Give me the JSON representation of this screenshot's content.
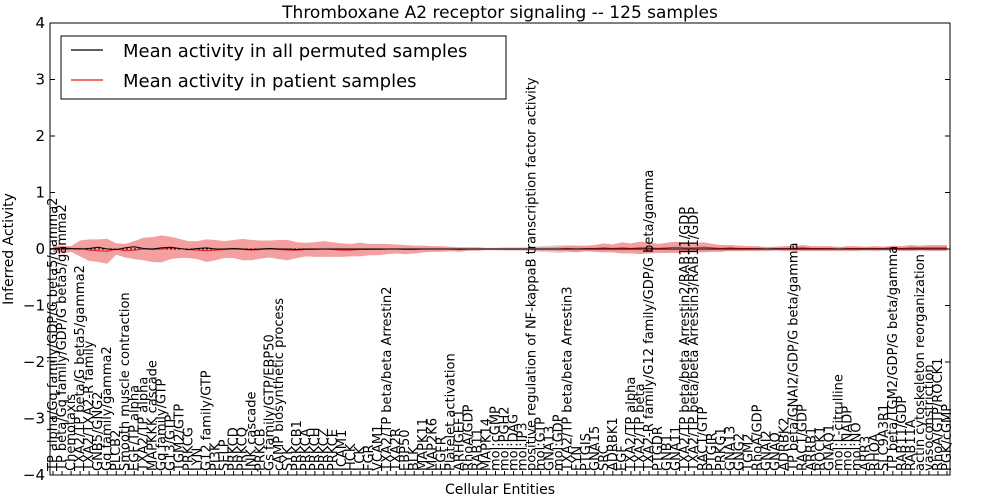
{
  "chart_data": {
    "type": "line",
    "title": "Thromboxane A2 receptor signaling -- 125 samples",
    "xlabel": "Cellular Entities",
    "ylabel": "Inferred Activity",
    "ylim": [
      -4,
      4
    ],
    "yticks": [
      4,
      3,
      2,
      1,
      0,
      -1,
      -2,
      -3,
      -4
    ],
    "ytick_labels": [
      "4",
      "3",
      "2",
      "1",
      "0",
      "−1",
      "−2",
      "−3",
      "−4"
    ],
    "legend": {
      "placement": "top-left",
      "entries": [
        {
          "label": "Mean activity in all permuted samples",
          "color": "#000000"
        },
        {
          "label": "Mean activity in patient samples",
          "color": "#e41a1c"
        }
      ]
    },
    "colors": {
      "permuted_line": "#000000",
      "patient_line": "#e41a1c",
      "patient_band": "#f08080",
      "permuted_band": "#c8c8c8",
      "zero_line": "#000000"
    },
    "entities": [
      "TP alpha/Gq family/GDP/G beta5/gamma2",
      "TP beta/Gq family/GDP/G beta5/gamma2",
      "Chemotaxis",
      "TXA2/TP beta/G beta5/gamma2",
      "TXA2/TXA2-R family",
      "GNB5/GNG2",
      "Gq family/gamma2",
      "PLCB2",
      "Smooth muscle contraction",
      "EGF/TP alpha",
      "TXA2/TP alpha",
      "MAPKKK cascade",
      "Gq family/GTP",
      "G13/GTP",
      "TGM2/GTP",
      "PRKCG",
      "LYN",
      "G12 family/GTP",
      "PI3K",
      "SELP",
      "PRKCD",
      "PRKCQ",
      "JNK cascade",
      "PRKCB",
      "Gs family/GTP/EBP50",
      "cAMP biosynthetic process",
      "SYK",
      "PRKCB1",
      "PRKCA",
      "PRKCH",
      "PRKCZ",
      "PRKCE",
      "ICAM1",
      "HCK",
      "LCK",
      "FGR",
      "VCAM1",
      "TXA2/TP beta/beta Arrestin2",
      "TXA2R",
      "EBP50",
      "BLK",
      "MAPK11",
      "MAP2K6",
      "EGFR",
      "Platelet activation",
      "ARHGEF1",
      "RhoA/GDP",
      "RAB11",
      "MAPK14",
      "mol:cGMP",
      "mol:PGH2",
      "mol:DAG",
      "mol:IP3",
      "positive regulation of NF-kappaB transcription factor activity",
      "mol:GTP",
      "GNA13",
      "mol:GDP",
      "TXA2/TP beta/beta Arrestin3",
      "FYN",
      "PTGIS",
      "GNA15",
      "SRC",
      "ADRBK1",
      "EGF",
      "TXA2/TP alpha",
      "TXA2/TP beta",
      "TXA2-R family/G12 family/GDP/G beta/gamma",
      "PTGDR",
      "GNB1",
      "GNA11",
      "TXA2/TP beta/beta Arrestin2/RAB11/GDP",
      "TXA2/TP beta/beta Arrestin3/RAB11/GDP",
      "RAC1/GTP",
      "PTGIR",
      "PRKG1",
      "GNA13",
      "GNG2",
      "TGM2",
      "RhoA/GDP",
      "GNAI2",
      "GNAQ",
      "ADRBK2",
      "TP beta/GNAI2/GDP/G beta/gamma",
      "RAC1/GDP",
      "ARRB1",
      "ROCK1",
      "GNAQ1",
      "mol:L-citrulline",
      "mol:NADP",
      "mol:NO",
      "ARR3",
      "RHOA",
      "SLC9A3R1",
      "TP beta/TGM2/GDP/G beta/gamma",
      "RAB11/GDP",
      "RAB11A",
      "actin cytoskeleton reorganization",
      "vasoconstriction",
      "RhoA/GTP/ROCK1",
      "PGK/cGMP"
    ],
    "patient_mean": [
      0.0,
      -0.01,
      0.0,
      0.01,
      -0.02,
      -0.03,
      -0.04,
      0.0,
      -0.03,
      -0.02,
      0.0,
      -0.01,
      0.0,
      0.02,
      0.01,
      -0.01,
      -0.02,
      -0.03,
      -0.02,
      -0.01,
      0.0,
      -0.01,
      -0.02,
      -0.01,
      0.0,
      -0.01,
      -0.02,
      -0.02,
      -0.01,
      -0.01,
      0.0,
      -0.01,
      -0.02,
      -0.02,
      -0.01,
      -0.01,
      -0.01,
      0.0,
      0.0,
      -0.01,
      -0.01,
      0.0,
      0.0,
      0.0,
      0.0,
      -0.01,
      0.0,
      0.0,
      0.0,
      0.0,
      0.0,
      0.0,
      0.0,
      0.0,
      0.0,
      0.0,
      0.0,
      0.01,
      0.0,
      0.01,
      0.01,
      0.02,
      0.01,
      0.02,
      0.01,
      0.02,
      0.02,
      0.01,
      0.02,
      0.03,
      0.02,
      0.02,
      0.03,
      0.02,
      0.01,
      0.02,
      0.01,
      0.01,
      0.01,
      0.0,
      0.01,
      0.01,
      0.01,
      0.02,
      0.01,
      0.01,
      0.01,
      0.0,
      0.01,
      0.01,
      0.01,
      0.01,
      0.01,
      0.02,
      0.01,
      0.02,
      0.02,
      0.02,
      0.02,
      0.02
    ],
    "patient_band_halfwidth": [
      0.05,
      0.07,
      0.05,
      0.14,
      0.19,
      0.2,
      0.22,
      0.1,
      0.12,
      0.16,
      0.2,
      0.22,
      0.24,
      0.2,
      0.17,
      0.15,
      0.16,
      0.2,
      0.18,
      0.15,
      0.16,
      0.19,
      0.18,
      0.16,
      0.15,
      0.17,
      0.18,
      0.14,
      0.12,
      0.13,
      0.14,
      0.13,
      0.12,
      0.11,
      0.12,
      0.1,
      0.1,
      0.09,
      0.08,
      0.08,
      0.07,
      0.06,
      0.05,
      0.05,
      0.04,
      0.04,
      0.03,
      0.03,
      0.02,
      0.02,
      0.02,
      0.02,
      0.02,
      0.02,
      0.03,
      0.03,
      0.04,
      0.05,
      0.06,
      0.05,
      0.06,
      0.08,
      0.07,
      0.1,
      0.09,
      0.11,
      0.1,
      0.08,
      0.09,
      0.1,
      0.09,
      0.08,
      0.09,
      0.07,
      0.06,
      0.05,
      0.05,
      0.04,
      0.04,
      0.03,
      0.03,
      0.04,
      0.04,
      0.05,
      0.04,
      0.04,
      0.04,
      0.03,
      0.04,
      0.04,
      0.03,
      0.04,
      0.03,
      0.04,
      0.04,
      0.05,
      0.04,
      0.05,
      0.05,
      0.05
    ],
    "permuted_mean": [
      0.01,
      0.02,
      0.01,
      0.0,
      0.01,
      0.03,
      0.0,
      -0.01,
      0.02,
      0.04,
      0.01,
      0.0,
      0.02,
      0.03,
      0.01,
      -0.01,
      0.01,
      0.02,
      0.0,
      0.0,
      0.01,
      0.0,
      -0.01,
      0.0,
      0.01,
      0.0,
      0.0,
      -0.01,
      0.0,
      0.0,
      0.0,
      0.0,
      0.0,
      0.0,
      0.0,
      0.0,
      0.0,
      0.0,
      0.0,
      0.0,
      0.0,
      0.0,
      0.0,
      0.0,
      0.0,
      0.0,
      0.0,
      0.0,
      0.0,
      0.0,
      0.0,
      0.0,
      0.0,
      0.0,
      0.0,
      0.0,
      0.0,
      0.0,
      0.0,
      0.0,
      0.0,
      0.0,
      0.0,
      0.0,
      0.0,
      0.0,
      0.0,
      0.0,
      0.0,
      0.0,
      0.0,
      0.0,
      0.0,
      0.0,
      0.0,
      0.0,
      0.0,
      0.0,
      0.0,
      0.0,
      0.0,
      0.0,
      0.0,
      0.0,
      0.0,
      0.0,
      0.0,
      0.0,
      0.0,
      0.0,
      0.0,
      0.0,
      0.0,
      0.0,
      0.0,
      0.0,
      0.0,
      0.0,
      0.0,
      0.0
    ],
    "permuted_band_halfwidth": [
      0.02,
      0.02,
      0.02,
      0.02,
      0.02,
      0.02,
      0.02,
      0.02,
      0.02,
      0.02,
      0.02,
      0.02,
      0.02,
      0.02,
      0.02,
      0.02,
      0.02,
      0.02,
      0.02,
      0.02,
      0.02,
      0.02,
      0.02,
      0.02,
      0.02,
      0.02,
      0.02,
      0.02,
      0.02,
      0.02,
      0.02,
      0.02,
      0.02,
      0.02,
      0.02,
      0.02,
      0.02,
      0.02,
      0.02,
      0.02,
      0.02,
      0.02,
      0.02,
      0.02,
      0.02,
      0.02,
      0.02,
      0.02,
      0.02,
      0.02,
      0.03,
      0.03,
      0.03,
      0.04,
      0.05,
      0.06,
      0.07,
      0.06,
      0.05,
      0.04,
      0.04,
      0.04,
      0.04,
      0.04,
      0.04,
      0.04,
      0.04,
      0.04,
      0.04,
      0.04,
      0.04,
      0.04,
      0.04,
      0.04,
      0.04,
      0.04,
      0.04,
      0.04,
      0.04,
      0.04,
      0.04,
      0.04,
      0.04,
      0.04,
      0.04,
      0.04,
      0.04,
      0.04,
      0.04,
      0.04,
      0.04,
      0.04,
      0.04,
      0.04,
      0.04,
      0.04,
      0.04,
      0.04,
      0.04,
      0.04
    ]
  }
}
